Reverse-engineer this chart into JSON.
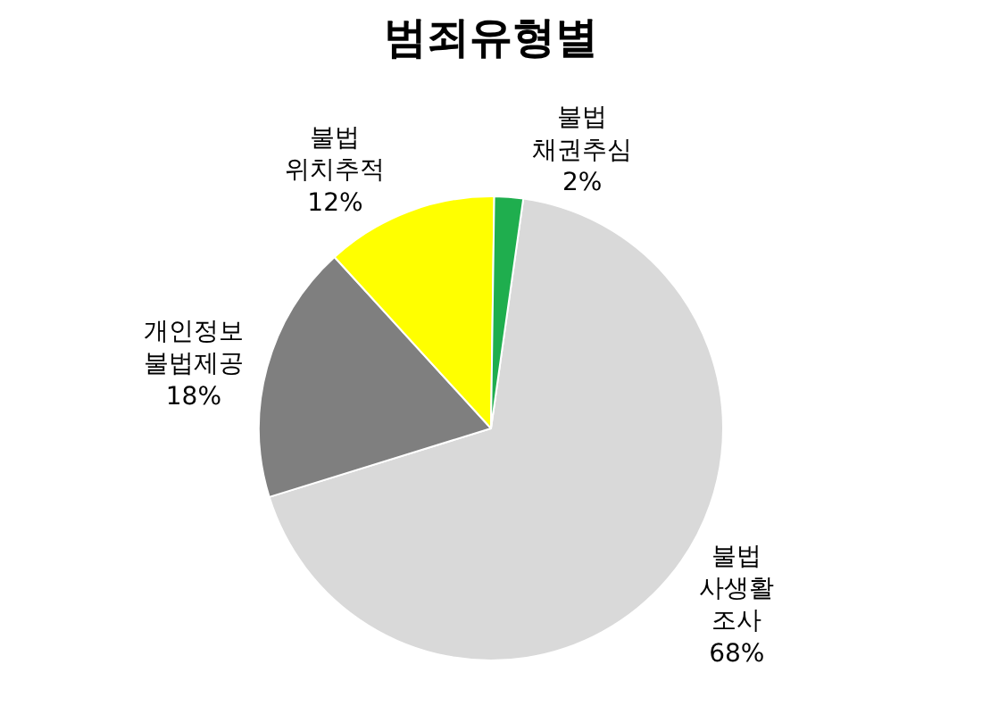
{
  "chart_data": {
    "type": "pie",
    "title": "범죄유형별",
    "categories": [
      "불법 사생활 조사",
      "개인정보 불법제공",
      "불법 위치추적",
      "불법 채권추심"
    ],
    "values": [
      68,
      18,
      12,
      2
    ],
    "value_labels": [
      "68%",
      "18%",
      "12%",
      "2%"
    ],
    "colors": [
      "#d9d9d9",
      "#7f7f7f",
      "#ffff00",
      "#1fae4e"
    ],
    "legend": false
  }
}
